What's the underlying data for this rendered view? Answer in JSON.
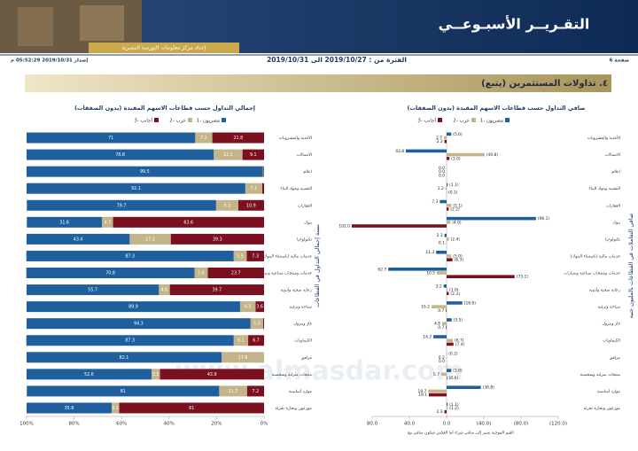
{
  "header": {
    "title": "التقـريــر الأسبـوعــي",
    "subtitle": "إعداد مركز معلومات البورصة المصرية",
    "page": "صفحة 6",
    "period": "الفترة من : 2019/10/27 الى 2019/10/31",
    "issued": "إصدار 2019/10/31 05:52:29 م"
  },
  "section": {
    "title": "٤. تداولات المستثمرين (يتبع)"
  },
  "watermark": "www.almasdar.com",
  "chart_data": [
    {
      "type": "bar_diverging",
      "title": "صافي التداول حسب قطاعات الاسهم المقيدة (بدون الصفقات)",
      "axis_label": "صافي التعاملات في القطاعات بالمليون جنيه",
      "footnote": "القيم الموجبة تشير إلى صافي شراء أما العكس فيكون صافي بيع",
      "categories": [
        "الأغذية والمشروبات",
        "الاتصالات",
        "اعلام",
        "التشييد ومواد البناء",
        "العقارات",
        "بنوك",
        "تكنولوجيا",
        "خدمات مالية (باستثناء البنوك)",
        "خدمات ومنتجات صناعية وسيارات",
        "رعاية صحية وأدوية",
        "سياحة وترفيه",
        "غاز وبترول",
        "الكيماويات",
        "مرافق",
        "منتجات منزلية وشخصية",
        "موارد أساسية",
        "موزعون وتجارة تجزئة"
      ],
      "series": [
        {
          "name": "مصريون -1",
          "color": "#1f5f9e",
          "values": [
            -5.0,
            43.8,
            0.0,
            -1.1,
            7.3,
            -96.1,
            2.3,
            11.3,
            62.7,
            3.2,
            -16.9,
            -5.5,
            14.2,
            -0.2,
            -5.0,
            -36.8,
            -1.1
          ],
          "value_labels": [
            "(5.0)",
            "43.8",
            "0.0",
            "(1.1)",
            "7.3",
            "(96.1)",
            "2.3",
            "11.3",
            "62.7",
            "3.2",
            "(16.9)",
            "(5.5)",
            "14.2",
            "(0.2)",
            "(5.0)",
            "(36.8)",
            "(1.1)"
          ]
        },
        {
          "name": "عرب -2",
          "color": "#c4b48a",
          "values": [
            2.7,
            -40.8,
            0.0,
            1.2,
            -5.1,
            -4.0,
            -2.4,
            -5.0,
            10.5,
            -1.0,
            16.2,
            4.8,
            -6.7,
            0.2,
            5.7,
            19.7,
            -1.2
          ],
          "value_labels": [
            "2.7",
            "(40.8)",
            "0.0",
            "1.2",
            "(5.1)",
            "(4.0)",
            "(2.4)",
            "(5.0)",
            "10.5",
            "(1.0)",
            "16.2",
            "4.8",
            "(6.7)",
            "0.2",
            "5.7",
            "19.7",
            "(1.2)"
          ]
        },
        {
          "name": "أجانب -3",
          "color": "#7a1020",
          "values": [
            2.3,
            -3.0,
            0.0,
            -0.1,
            -2.2,
            102.0,
            0.1,
            -6.3,
            -73.1,
            -2.3,
            0.7,
            0.7,
            -7.4,
            0.0,
            -0.6,
            19.1,
            2.3
          ],
          "value_labels": [
            "2.3",
            "(3.0)",
            "0.0",
            "(0.1)",
            "(2.2)",
            "102.0",
            "0.1",
            "(6.3)",
            "(73.1)",
            "(2.3)",
            "0.7",
            "0.7",
            "(7.4)",
            "0.0",
            "(0.6)",
            "19.1",
            "2.3"
          ]
        }
      ],
      "xlim": [
        80,
        -120
      ],
      "xticks": [
        {
          "value": 80,
          "label": "80.0"
        },
        {
          "value": 40,
          "label": "40.0"
        },
        {
          "value": 0,
          "label": "0.0"
        },
        {
          "value": -40,
          "label": "(40.0)"
        },
        {
          "value": -80,
          "label": "(80.0)"
        },
        {
          "value": -120,
          "label": "(120.0)"
        }
      ]
    },
    {
      "type": "bar_stacked_percent",
      "title": "إجمالي التداول حسب قطاعات الاسهم المقيدة (بدون الصفقات)",
      "axis_label": "نسبة إجمالي التداول في القطاعات",
      "categories": [
        "الأغذية والمشروبات",
        "الاتصالات",
        "اعلام",
        "التشييد ومواد البناء",
        "العقارات",
        "بنوك",
        "تكنولوجيا",
        "خدمات مالية (باستثناء البنوك)",
        "خدمات ومنتجات صناعية وسيارات",
        "رعاية صحية وأدوية",
        "سياحة وترفيه",
        "غاز وبترول",
        "الكيماويات",
        "مرافق",
        "منتجات منزلية وشخصية",
        "موارد أساسية",
        "موزعون وتجارة تجزئة"
      ],
      "series": [
        {
          "name": "مصريون -1",
          "color": "#1f5f9e",
          "values": [
            71.0,
            78.8,
            99.5,
            92.1,
            79.7,
            31.6,
            43.4,
            87.3,
            70.8,
            55.7,
            89.9,
            94.3,
            87.3,
            82.1,
            52.6,
            81.0,
            35.8
          ]
        },
        {
          "name": "عرب -2",
          "color": "#c4b48a",
          "values": [
            7.2,
            12.1,
            0.3,
            7.1,
            9.3,
            4.7,
            17.3,
            5.5,
            5.6,
            4.6,
            6.5,
            5.3,
            6.1,
            17.9,
            3.5,
            11.7,
            3.2
          ]
        },
        {
          "name": "أجانب -3",
          "color": "#7a1020",
          "values": [
            21.8,
            9.1,
            0.2,
            0.8,
            10.9,
            63.6,
            39.3,
            7.3,
            23.7,
            39.7,
            3.6,
            0.4,
            6.7,
            0.0,
            43.9,
            7.2,
            61.0
          ]
        }
      ],
      "xlim": [
        100,
        0
      ],
      "xticks": [
        {
          "value": 100,
          "label": "100%"
        },
        {
          "value": 80,
          "label": "80%"
        },
        {
          "value": 60,
          "label": "60%"
        },
        {
          "value": 40,
          "label": "40%"
        },
        {
          "value": 20,
          "label": "20%"
        },
        {
          "value": 0,
          "label": "0%"
        }
      ]
    }
  ]
}
